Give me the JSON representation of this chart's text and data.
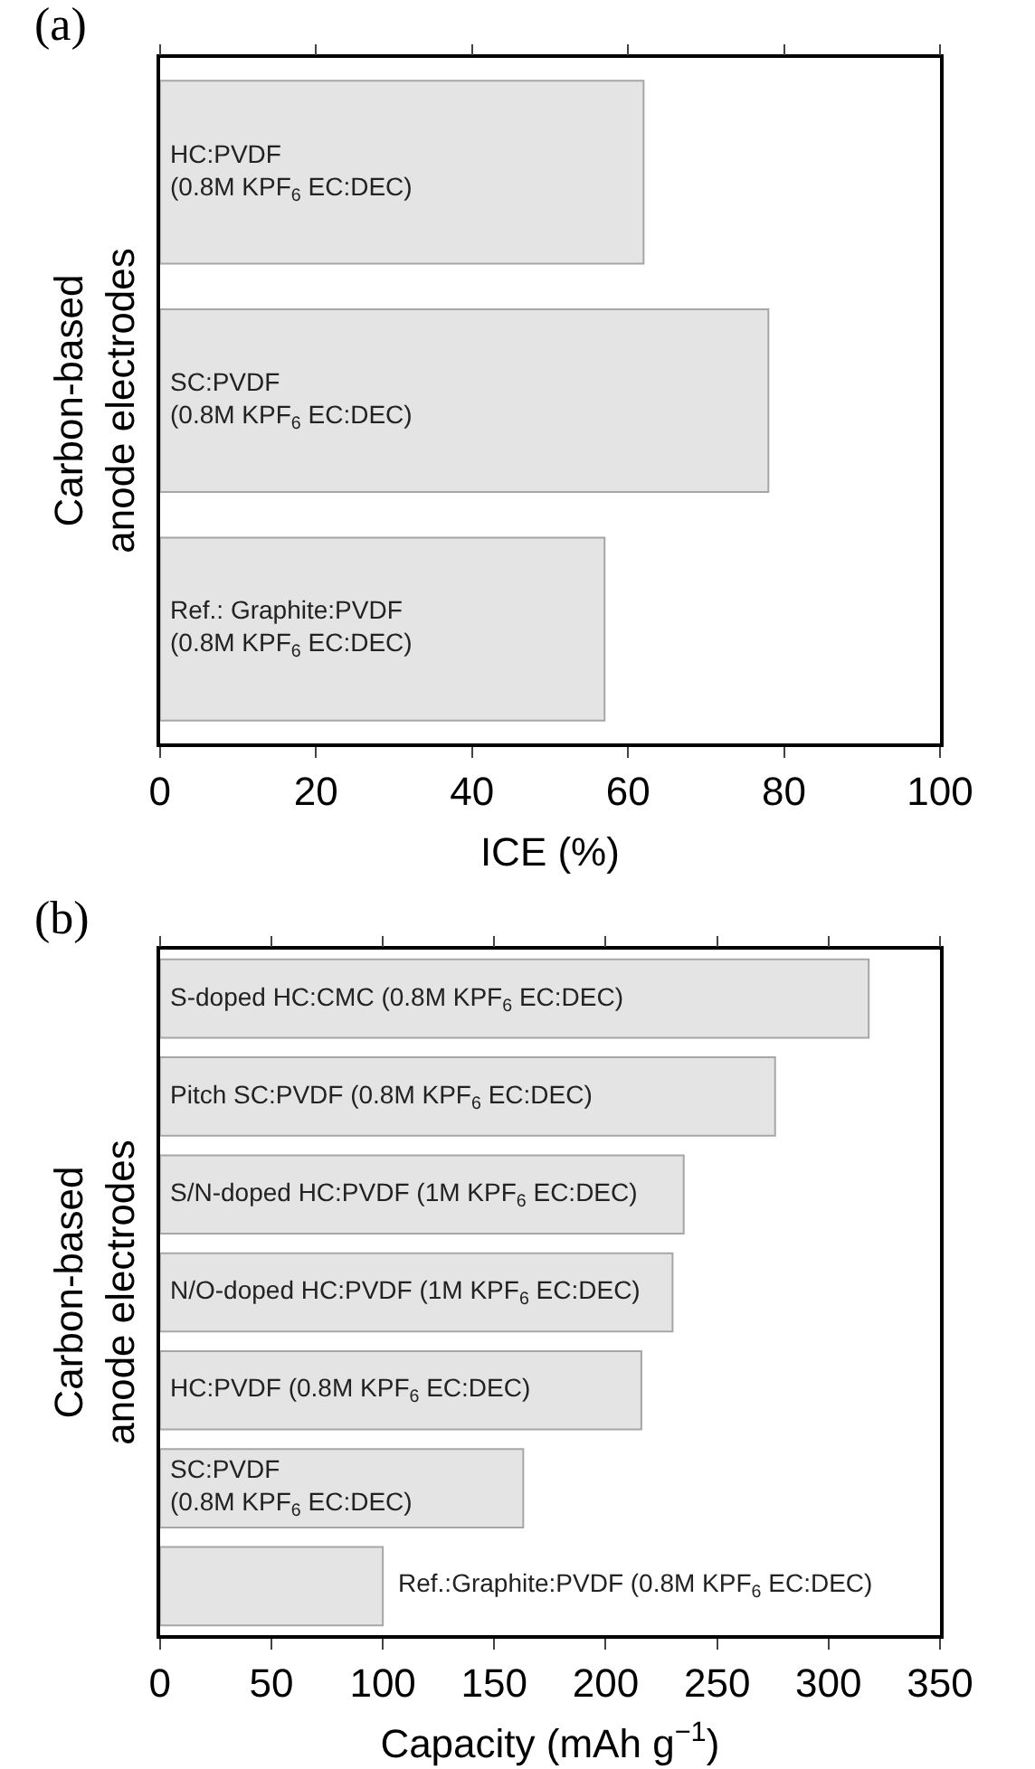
{
  "chart_data": [
    {
      "type": "bar",
      "orientation": "horizontal",
      "title": "(a)",
      "xlabel": "ICE (%)",
      "ylabel": "Carbon-based\nanode electrodes",
      "categories": [
        "HC:PVDF\n(0.8M KPF$_{6}$ EC:DEC)",
        "SC:PVDF\n(0.8M KPF$_{6}$ EC:DEC)",
        "Ref.: Graphite:PVDF\n(0.8M KPF$_{6}$ EC:DEC)"
      ],
      "values": [
        62,
        78,
        57
      ],
      "color": "#e4e4e4",
      "xlim": [
        0,
        100
      ],
      "xticks": [
        0,
        20,
        40,
        60,
        80,
        100
      ],
      "tick_labels": "x",
      "grid": false
    },
    {
      "type": "bar",
      "orientation": "horizontal",
      "title": "(b)",
      "xlabel": "Capacity (mAh g$^{−1}$)",
      "ylabel": "Carbon-based\nanode electrodes",
      "categories": [
        "S-doped HC:CMC (0.8M KPF$_{6}$ EC:DEC)",
        "Pitch SC:PVDF (0.8M KPF$_{6}$ EC:DEC)",
        "S/N-doped HC:PVDF (1M KPF$_{6}$ EC:DEC)",
        "N/O-doped HC:PVDF (1M KPF$_{6}$ EC:DEC)",
        "HC:PVDF (0.8M KPF$_{6}$ EC:DEC)",
        "SC:PVDF\n(0.8M KPF$_{6}$ EC:DEC)",
        "Ref.:Graphite:PVDF (0.8M KPF$_{6}$ EC:DEC)"
      ],
      "values": [
        318,
        276,
        235,
        230,
        216,
        163,
        100
      ],
      "color": "#e4e4e4",
      "xlim": [
        0,
        350
      ],
      "xticks": [
        0,
        50,
        100,
        150,
        200,
        250,
        300,
        350
      ],
      "tick_labels": "x",
      "grid": false
    }
  ]
}
